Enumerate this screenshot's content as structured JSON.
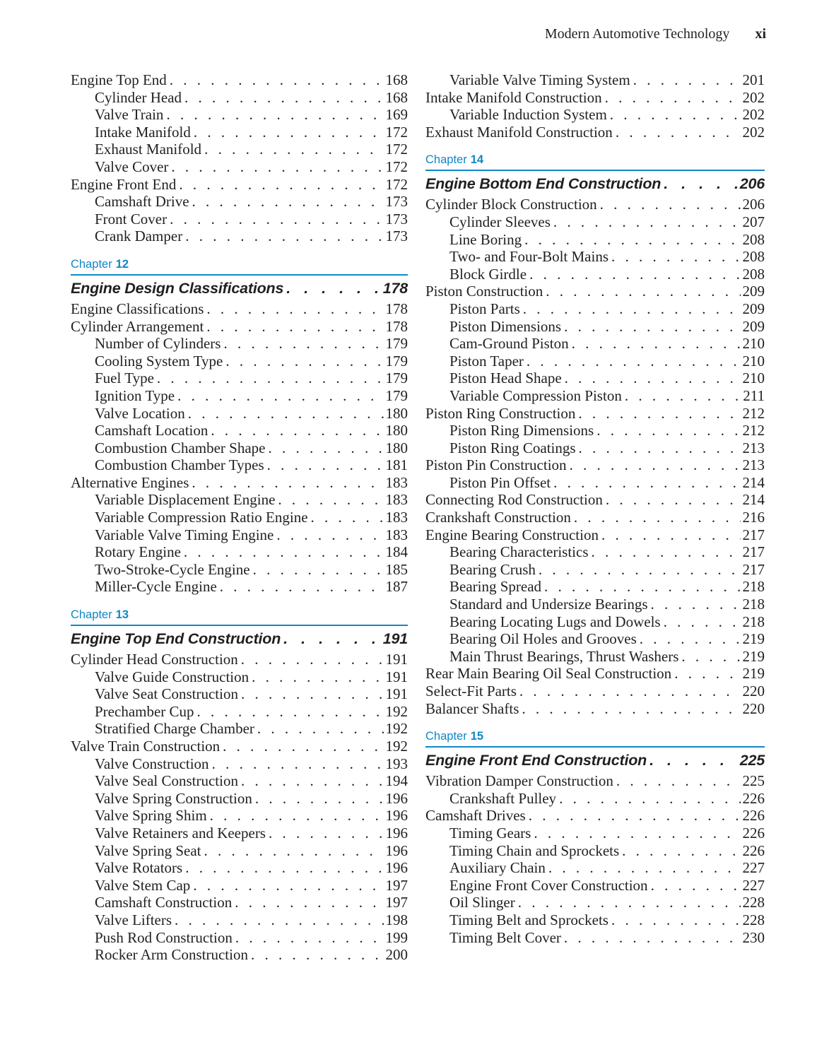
{
  "header": {
    "book_title": "Modern Automotive Technology",
    "folio": "xi"
  },
  "columns": {
    "left": [
      {
        "type": "entries",
        "items": [
          {
            "label": "Engine Top End",
            "page": "168",
            "level": 1
          },
          {
            "label": "Cylinder Head",
            "page": "168",
            "level": 2
          },
          {
            "label": "Valve Train",
            "page": "169",
            "level": 2
          },
          {
            "label": "Intake Manifold",
            "page": "172",
            "level": 2
          },
          {
            "label": "Exhaust Manifold",
            "page": "172",
            "level": 2
          },
          {
            "label": "Valve Cover",
            "page": "172",
            "level": 2
          },
          {
            "label": "Engine Front End",
            "page": "172",
            "level": 1
          },
          {
            "label": "Camshaft Drive",
            "page": "173",
            "level": 2
          },
          {
            "label": "Front Cover",
            "page": "173",
            "level": 2
          },
          {
            "label": "Crank Damper",
            "page": "173",
            "level": 2
          }
        ]
      },
      {
        "type": "chapter",
        "label": "Chapter",
        "number": "12",
        "title": "Engine Design Classifications",
        "page": "178"
      },
      {
        "type": "entries",
        "items": [
          {
            "label": "Engine Classifications",
            "page": "178",
            "level": 1
          },
          {
            "label": "Cylinder Arrangement",
            "page": "178",
            "level": 1
          },
          {
            "label": "Number of Cylinders",
            "page": "179",
            "level": 2
          },
          {
            "label": "Cooling System Type",
            "page": "179",
            "level": 2
          },
          {
            "label": "Fuel Type",
            "page": "179",
            "level": 2
          },
          {
            "label": "Ignition Type",
            "page": "179",
            "level": 2
          },
          {
            "label": "Valve Location",
            "page": "180",
            "level": 2
          },
          {
            "label": "Camshaft Location",
            "page": "180",
            "level": 2
          },
          {
            "label": "Combustion Chamber Shape",
            "page": "180",
            "level": 2
          },
          {
            "label": "Combustion Chamber Types",
            "page": "181",
            "level": 2
          },
          {
            "label": "Alternative Engines",
            "page": "183",
            "level": 1
          },
          {
            "label": "Variable Displacement Engine",
            "page": "183",
            "level": 2
          },
          {
            "label": "Variable Compression Ratio Engine",
            "page": "183",
            "level": 2
          },
          {
            "label": "Variable Valve Timing Engine",
            "page": "183",
            "level": 2
          },
          {
            "label": "Rotary Engine",
            "page": "184",
            "level": 2
          },
          {
            "label": "Two-Stroke-Cycle Engine",
            "page": "185",
            "level": 2
          },
          {
            "label": "Miller-Cycle Engine",
            "page": "187",
            "level": 2
          }
        ]
      },
      {
        "type": "chapter",
        "label": "Chapter",
        "number": "13",
        "title": "Engine Top End Construction",
        "page": "191"
      },
      {
        "type": "entries",
        "items": [
          {
            "label": "Cylinder Head Construction",
            "page": "191",
            "level": 1
          },
          {
            "label": "Valve Guide Construction",
            "page": "191",
            "level": 2
          },
          {
            "label": "Valve Seat Construction",
            "page": "191",
            "level": 2
          },
          {
            "label": "Prechamber Cup",
            "page": "192",
            "level": 2
          },
          {
            "label": "Stratified Charge Chamber",
            "page": "192",
            "level": 2
          },
          {
            "label": "Valve Train Construction",
            "page": "192",
            "level": 1
          },
          {
            "label": "Valve Construction",
            "page": "193",
            "level": 2
          },
          {
            "label": "Valve Seal Construction",
            "page": "194",
            "level": 2
          },
          {
            "label": "Valve Spring Construction",
            "page": "196",
            "level": 2
          },
          {
            "label": "Valve Spring Shim",
            "page": "196",
            "level": 2
          },
          {
            "label": "Valve Retainers and Keepers",
            "page": "196",
            "level": 2
          },
          {
            "label": "Valve Spring Seat",
            "page": "196",
            "level": 2
          },
          {
            "label": "Valve Rotators",
            "page": "196",
            "level": 2
          },
          {
            "label": "Valve Stem Cap",
            "page": "197",
            "level": 2
          },
          {
            "label": "Camshaft Construction",
            "page": "197",
            "level": 2
          },
          {
            "label": "Valve Lifters",
            "page": "198",
            "level": 2
          },
          {
            "label": "Push Rod Construction",
            "page": "199",
            "level": 2
          },
          {
            "label": "Rocker Arm Construction",
            "page": "200",
            "level": 2
          }
        ]
      }
    ],
    "right": [
      {
        "type": "entries",
        "items": [
          {
            "label": "Variable Valve Timing System",
            "page": "201",
            "level": 2
          },
          {
            "label": "Intake Manifold Construction",
            "page": "202",
            "level": 1
          },
          {
            "label": "Variable Induction System",
            "page": "202",
            "level": 2
          },
          {
            "label": "Exhaust Manifold Construction",
            "page": "202",
            "level": 1
          }
        ]
      },
      {
        "type": "chapter",
        "label": "Chapter",
        "number": "14",
        "title": "Engine Bottom End Construction",
        "page": "206"
      },
      {
        "type": "entries",
        "items": [
          {
            "label": "Cylinder Block Construction",
            "page": "206",
            "level": 1
          },
          {
            "label": "Cylinder Sleeves",
            "page": "207",
            "level": 2
          },
          {
            "label": "Line Boring",
            "page": "208",
            "level": 2
          },
          {
            "label": "Two- and Four-Bolt Mains",
            "page": "208",
            "level": 2
          },
          {
            "label": "Block Girdle",
            "page": "208",
            "level": 2
          },
          {
            "label": "Piston Construction",
            "page": "209",
            "level": 1
          },
          {
            "label": "Piston Parts",
            "page": "209",
            "level": 2
          },
          {
            "label": "Piston Dimensions",
            "page": "209",
            "level": 2
          },
          {
            "label": "Cam-Ground Piston",
            "page": "210",
            "level": 2
          },
          {
            "label": "Piston Taper",
            "page": "210",
            "level": 2
          },
          {
            "label": "Piston Head Shape",
            "page": "210",
            "level": 2
          },
          {
            "label": "Variable Compression Piston",
            "page": "211",
            "level": 2
          },
          {
            "label": "Piston Ring Construction",
            "page": "212",
            "level": 1
          },
          {
            "label": "Piston Ring Dimensions",
            "page": "212",
            "level": 2
          },
          {
            "label": "Piston Ring Coatings",
            "page": "213",
            "level": 2
          },
          {
            "label": "Piston Pin Construction",
            "page": "213",
            "level": 1
          },
          {
            "label": "Piston Pin Offset",
            "page": "214",
            "level": 2
          },
          {
            "label": "Connecting Rod Construction",
            "page": "214",
            "level": 1
          },
          {
            "label": "Crankshaft Construction",
            "page": "216",
            "level": 1
          },
          {
            "label": "Engine Bearing Construction",
            "page": "217",
            "level": 1
          },
          {
            "label": "Bearing Characteristics",
            "page": "217",
            "level": 2
          },
          {
            "label": "Bearing Crush",
            "page": "217",
            "level": 2
          },
          {
            "label": "Bearing Spread",
            "page": "218",
            "level": 2
          },
          {
            "label": "Standard and Undersize Bearings",
            "page": "218",
            "level": 2
          },
          {
            "label": "Bearing Locating Lugs and Dowels",
            "page": "218",
            "level": 2
          },
          {
            "label": "Bearing Oil Holes and Grooves",
            "page": "219",
            "level": 2
          },
          {
            "label": "Main Thrust Bearings, Thrust Washers",
            "page": "219",
            "level": 2
          },
          {
            "label": "Rear Main Bearing Oil Seal Construction",
            "page": "219",
            "level": 1
          },
          {
            "label": "Select-Fit Parts",
            "page": "220",
            "level": 1
          },
          {
            "label": "Balancer Shafts",
            "page": "220",
            "level": 1
          }
        ]
      },
      {
        "type": "chapter",
        "label": "Chapter",
        "number": "15",
        "title": "Engine Front End Construction",
        "page": "225"
      },
      {
        "type": "entries",
        "items": [
          {
            "label": "Vibration Damper Construction",
            "page": "225",
            "level": 1
          },
          {
            "label": "Crankshaft Pulley",
            "page": "226",
            "level": 2
          },
          {
            "label": "Camshaft Drives",
            "page": "226",
            "level": 1
          },
          {
            "label": "Timing Gears",
            "page": "226",
            "level": 2
          },
          {
            "label": "Timing Chain and Sprockets",
            "page": "226",
            "level": 2
          },
          {
            "label": "Auxiliary Chain",
            "page": "227",
            "level": 2
          },
          {
            "label": "Engine Front Cover Construction",
            "page": "227",
            "level": 2
          },
          {
            "label": "Oil Slinger",
            "page": "228",
            "level": 2
          },
          {
            "label": "Timing Belt and Sprockets",
            "page": "228",
            "level": 2
          },
          {
            "label": "Timing Belt Cover",
            "page": "230",
            "level": 2
          }
        ]
      }
    ]
  }
}
